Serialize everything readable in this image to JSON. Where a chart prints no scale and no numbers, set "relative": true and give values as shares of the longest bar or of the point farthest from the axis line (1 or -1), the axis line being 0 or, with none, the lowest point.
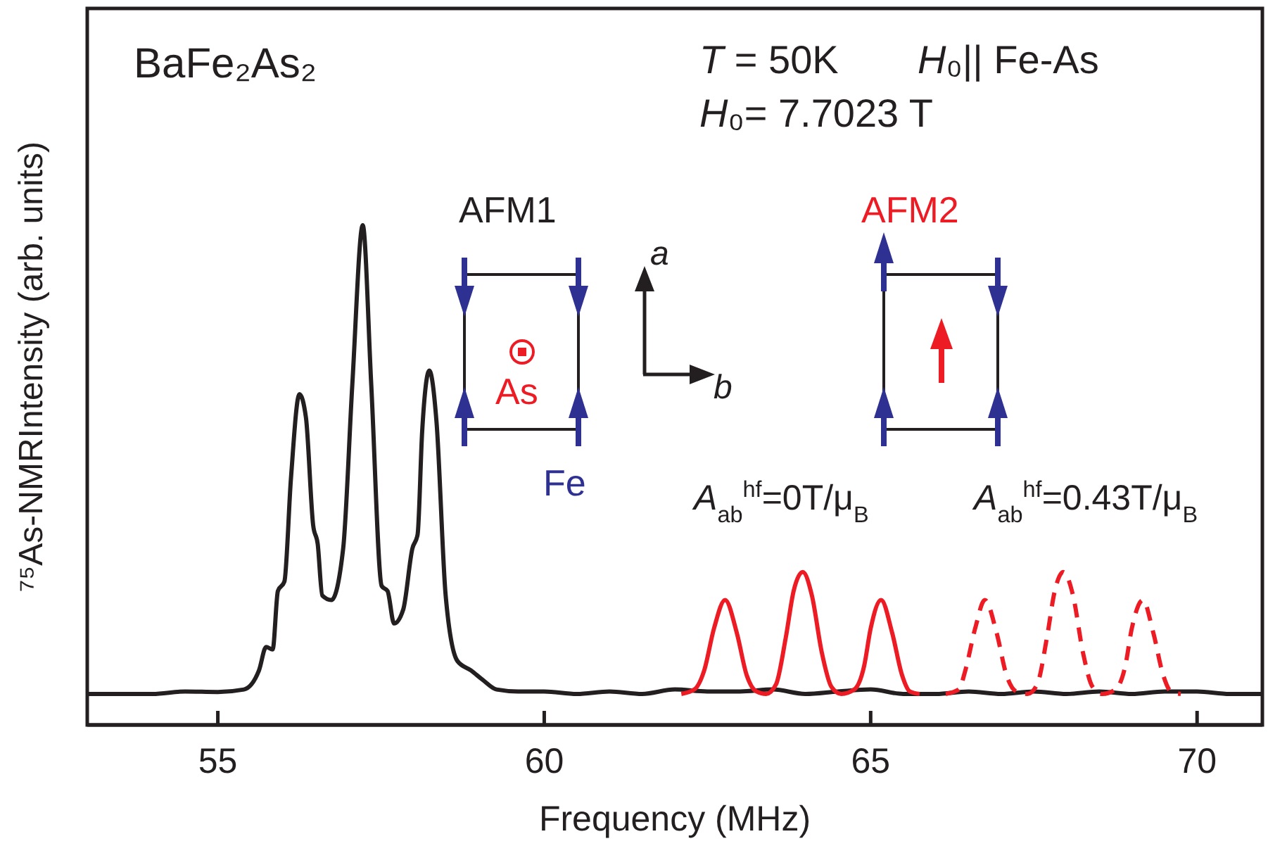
{
  "chart_data": {
    "type": "line",
    "relative": true,
    "xlabel": "Frequency (MHz)",
    "ylabel": "⁷⁵As-NMRIntensity (arb. units)",
    "xlim": [
      53,
      71
    ],
    "xticks": [
      55,
      60,
      65,
      70
    ],
    "grid": false,
    "marker": "none",
    "tick_labels": "x",
    "series": [
      {
        "color": "#231f20",
        "line_style": "solid",
        "x": [
          53,
          53.5,
          54,
          54.5,
          55,
          55.4,
          55.63,
          55.74,
          55.84,
          55.92,
          56.02,
          56.12,
          56.25,
          56.35,
          56.46,
          56.53,
          56.6,
          56.74,
          56.92,
          57.06,
          57.22,
          57.35,
          57.51,
          57.6,
          57.7,
          57.84,
          57.98,
          58.06,
          58.13,
          58.24,
          58.35,
          58.49,
          58.67,
          58.88,
          59.06,
          59.27,
          59.6,
          60,
          60.5,
          61,
          61.5,
          62,
          62.5,
          63,
          63.5,
          64,
          64.5,
          65,
          65.5,
          66,
          66.5,
          67,
          67.5,
          68,
          68.5,
          69,
          69.5,
          70,
          70.5,
          71
        ],
        "values": [
          0.062,
          0.062,
          0.062,
          0.067,
          0.066,
          0.071,
          0.109,
          0.156,
          0.151,
          0.268,
          0.287,
          0.493,
          0.662,
          0.615,
          0.4,
          0.362,
          0.259,
          0.25,
          0.353,
          0.681,
          1,
          0.681,
          0.278,
          0.268,
          0.203,
          0.231,
          0.353,
          0.381,
          0.587,
          0.709,
          0.606,
          0.259,
          0.128,
          0.109,
          0.09,
          0.071,
          0.067,
          0.067,
          0.062,
          0.067,
          0.062,
          0.071,
          0.067,
          0.067,
          0.071,
          0.062,
          0.067,
          0.071,
          0.062,
          0.062,
          0.067,
          0.062,
          0.067,
          0.062,
          0.067,
          0.062,
          0.067,
          0.067,
          0.062,
          0.062
        ]
      },
      {
        "color": "#ed1c24",
        "line_style": "solid",
        "x": [
          62.1,
          62.3,
          62.45,
          62.6,
          62.77,
          62.95,
          63.1,
          63.25,
          63.4,
          63.55,
          63.7,
          63.82,
          63.96,
          64.1,
          64.25,
          64.4,
          64.55,
          64.75,
          64.9,
          65,
          65.16,
          65.33,
          65.48,
          65.6,
          65.75
        ],
        "values": [
          0.062,
          0.071,
          0.109,
          0.193,
          0.25,
          0.184,
          0.1,
          0.067,
          0.062,
          0.081,
          0.175,
          0.268,
          0.306,
          0.259,
          0.146,
          0.076,
          0.062,
          0.071,
          0.118,
          0.193,
          0.25,
          0.184,
          0.1,
          0.067,
          0.062
        ]
      },
      {
        "color": "#ed1c24",
        "line_style": "dashed",
        "x": [
          66.15,
          66.35,
          66.45,
          66.6,
          66.75,
          66.93,
          67.08,
          67.23,
          67.4,
          67.55,
          67.7,
          67.82,
          67.95,
          68.1,
          68.25,
          68.4,
          68.55,
          68.75,
          68.9,
          69,
          69.17,
          69.33,
          69.48,
          69.6,
          69.75
        ],
        "values": [
          0.062,
          0.071,
          0.109,
          0.193,
          0.25,
          0.184,
          0.1,
          0.067,
          0.062,
          0.081,
          0.175,
          0.268,
          0.306,
          0.259,
          0.146,
          0.076,
          0.062,
          0.071,
          0.118,
          0.193,
          0.25,
          0.184,
          0.1,
          0.067,
          0.062
        ]
      }
    ],
    "annotations": [
      "BaFe₂As₂",
      "T = 50K",
      "H₀|| Fe-As",
      "H₀= 7.7023 T",
      "AFM1",
      "AFM2",
      "As",
      "Fe",
      "a",
      "b",
      "A$_{ab}$$^{hf}$=0T/μ$_{B}$",
      "A$_{ab}$$^{hf}$=0.43T/μ$_{B}$"
    ]
  }
}
